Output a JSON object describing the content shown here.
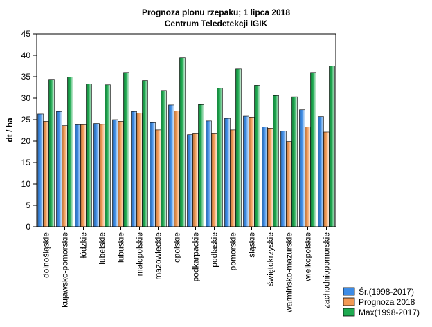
{
  "chart_data": {
    "type": "bar",
    "title": "Prognoza plonu rzepaku; 1 lipca 2018",
    "subtitle": "Centrum Teledetekcji IGIK",
    "xlabel": "",
    "ylabel": "dt / ha",
    "ylim": [
      0,
      45
    ],
    "yticks": [
      0,
      5,
      10,
      15,
      20,
      25,
      30,
      35,
      40,
      45
    ],
    "grid": false,
    "legend_position": "bottom-right",
    "categories": [
      "dolnośląskie",
      "kujawsko-pomorskie",
      "łódzkie",
      "lubelskie",
      "lubuskie",
      "małopolskie",
      "mazowieckie",
      "opolskie",
      "podkarpackie",
      "podlaskie",
      "pomorskie",
      "śląskie",
      "świętokrzyskie",
      "warmińsko-mazurskie",
      "wielkopolskie",
      "zachodniopomorskie"
    ],
    "series": [
      {
        "name": "Śr.(1998-2017)",
        "color": "#3d8ce6",
        "values": [
          26.3,
          26.9,
          23.8,
          24.1,
          25.0,
          26.9,
          24.3,
          28.4,
          21.5,
          24.7,
          25.3,
          25.8,
          23.3,
          22.3,
          27.3,
          25.7
        ]
      },
      {
        "name": "Prognoza 2018",
        "color": "#f39a55",
        "values": [
          24.6,
          23.6,
          23.8,
          23.9,
          24.6,
          26.5,
          22.6,
          27.0,
          21.7,
          21.7,
          22.6,
          25.6,
          23.0,
          19.9,
          23.3,
          22.1
        ]
      },
      {
        "name": "Max(1998-2017)",
        "color": "#1eaa50",
        "values": [
          34.4,
          34.9,
          33.3,
          33.1,
          36.0,
          34.1,
          31.8,
          39.4,
          28.5,
          32.3,
          36.8,
          33.0,
          30.6,
          30.3,
          36.0,
          37.5
        ]
      }
    ]
  }
}
